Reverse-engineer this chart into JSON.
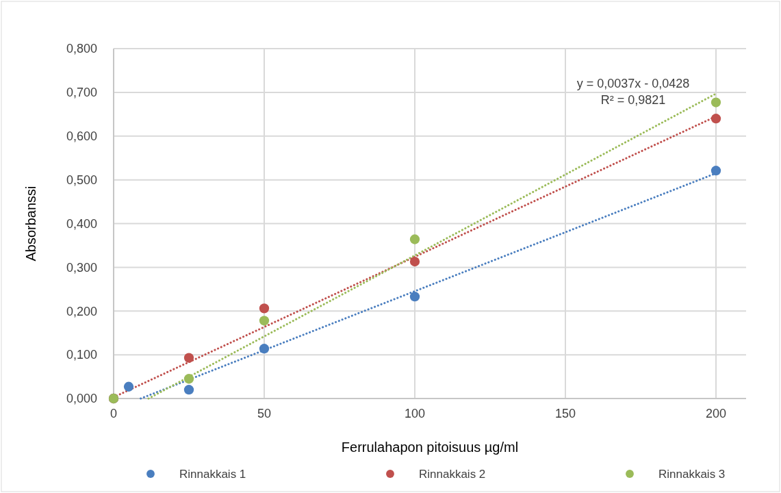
{
  "chart_data": {
    "type": "scatter",
    "xlabel": "Ferrulahapon pitoisuus µg/ml",
    "ylabel": "Absorbanssi",
    "xlim": [
      0,
      210
    ],
    "xticks": [
      0,
      50,
      100,
      150,
      200
    ],
    "ylim": [
      0,
      0.8
    ],
    "yticks": [
      {
        "value": 0,
        "label": "0,000"
      },
      {
        "value": 0.1,
        "label": "0,100"
      },
      {
        "value": 0.2,
        "label": "0,200"
      },
      {
        "value": 0.3,
        "label": "0,300"
      },
      {
        "value": 0.4,
        "label": "0,400"
      },
      {
        "value": 0.5,
        "label": "0,500"
      },
      {
        "value": 0.6,
        "label": "0,600"
      },
      {
        "value": 0.7,
        "label": "0,700"
      },
      {
        "value": 0.8,
        "label": "0,800"
      }
    ],
    "grid": true,
    "legend": "bottom",
    "marker": "circle",
    "series": [
      {
        "name": "Rinnakkais 1",
        "color": "#4a7ebf",
        "x": [
          0,
          5,
          25,
          50,
          100,
          200
        ],
        "values": [
          0,
          0.027,
          0.02,
          0.114,
          0.233,
          0.521
        ]
      },
      {
        "name": "Rinnakkais 2",
        "color": "#c0504d",
        "x": [
          0,
          25,
          50,
          100,
          200
        ],
        "values": [
          0,
          0.093,
          0.206,
          0.313,
          0.64
        ]
      },
      {
        "name": "Rinnakkais 3",
        "color": "#9bbb59",
        "x": [
          0,
          25,
          50,
          100,
          200
        ],
        "values": [
          0,
          0.045,
          0.178,
          0.364,
          0.677
        ]
      },
      {
        "type": "line",
        "color": "#4a7ebf",
        "x": [
          9,
          200
        ],
        "values": [
          0,
          0.515
        ],
        "line_style": "dotted",
        "marker": "none"
      },
      {
        "type": "line",
        "color": "#c0504d",
        "x": [
          0,
          200
        ],
        "values": [
          0.003,
          0.645
        ],
        "line_style": "dotted",
        "marker": "none"
      },
      {
        "type": "line",
        "color": "#9bbb59",
        "x": [
          11.6,
          200
        ],
        "values": [
          0,
          0.697
        ],
        "line_style": "dotted",
        "marker": "none"
      }
    ],
    "annotations": [
      "y = 0,0037x - 0,0428",
      "R² = 0,9821"
    ]
  }
}
